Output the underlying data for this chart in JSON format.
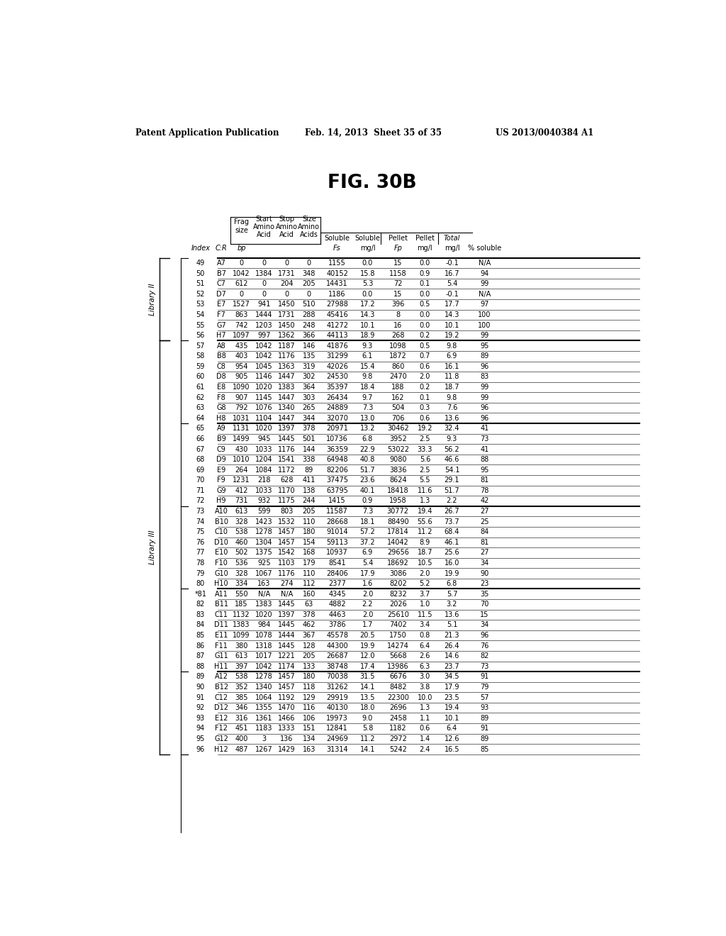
{
  "title": "FIG. 30B",
  "patent_left": "Patent Application Publication",
  "patent_mid": "Feb. 14, 2013  Sheet 35 of 35",
  "patent_right": "US 2013/0040384 A1",
  "rows": [
    [
      49,
      "A7",
      0,
      0,
      0,
      0,
      1155,
      "0.0",
      15,
      "0.0",
      "-0.1",
      "N/A"
    ],
    [
      50,
      "B7",
      1042,
      1384,
      1731,
      348,
      40152,
      "15.8",
      1158,
      "0.9",
      "16.7",
      94
    ],
    [
      51,
      "C7",
      612,
      0,
      204,
      205,
      14431,
      "5.3",
      72,
      "0.1",
      "5.4",
      99
    ],
    [
      52,
      "D7",
      0,
      0,
      0,
      0,
      1186,
      "0.0",
      15,
      "0.0",
      "-0.1",
      "N/A"
    ],
    [
      53,
      "E7",
      1527,
      941,
      1450,
      510,
      27988,
      "17.2",
      396,
      "0.5",
      "17.7",
      97
    ],
    [
      54,
      "F7",
      863,
      1444,
      1731,
      288,
      45416,
      "14.3",
      8,
      "0.0",
      "14.3",
      100
    ],
    [
      55,
      "G7",
      742,
      1203,
      1450,
      248,
      41272,
      "10.1",
      16,
      "0.0",
      "10.1",
      100
    ],
    [
      56,
      "H7",
      1097,
      997,
      1362,
      366,
      44113,
      "18.9",
      268,
      "0.2",
      "19.2",
      99
    ],
    [
      57,
      "A8",
      435,
      1042,
      1187,
      146,
      41876,
      "9.3",
      1098,
      "0.5",
      "9.8",
      95
    ],
    [
      58,
      "B8",
      403,
      1042,
      1176,
      135,
      31299,
      "6.1",
      1872,
      "0.7",
      "6.9",
      89
    ],
    [
      59,
      "C8",
      954,
      1045,
      1363,
      319,
      42026,
      "15.4",
      860,
      "0.6",
      "16.1",
      96
    ],
    [
      60,
      "D8",
      905,
      1146,
      1447,
      302,
      24530,
      "9.8",
      2470,
      "2.0",
      "11.8",
      83
    ],
    [
      61,
      "E8",
      1090,
      1020,
      1383,
      364,
      35397,
      "18.4",
      188,
      "0.2",
      "18.7",
      99
    ],
    [
      62,
      "F8",
      907,
      1145,
      1447,
      303,
      26434,
      "9.7",
      162,
      "0.1",
      "9.8",
      99
    ],
    [
      63,
      "G8",
      792,
      1076,
      1340,
      265,
      24889,
      "7.3",
      504,
      "0.3",
      "7.6",
      96
    ],
    [
      64,
      "H8",
      1031,
      1104,
      1447,
      344,
      32070,
      "13.0",
      706,
      "0.6",
      "13.6",
      96
    ],
    [
      65,
      "A9",
      1131,
      1020,
      1397,
      378,
      20971,
      "13.2",
      30462,
      "19.2",
      "32.4",
      41
    ],
    [
      66,
      "B9",
      1499,
      945,
      1445,
      501,
      10736,
      "6.8",
      3952,
      "2.5",
      "9.3",
      73
    ],
    [
      67,
      "C9",
      430,
      1033,
      1176,
      144,
      36359,
      "22.9",
      53022,
      "33.3",
      "56.2",
      41
    ],
    [
      68,
      "D9",
      1010,
      1204,
      1541,
      338,
      64948,
      "40.8",
      9080,
      "5.6",
      "46.6",
      88
    ],
    [
      69,
      "E9",
      264,
      1084,
      1172,
      89,
      82206,
      "51.7",
      3836,
      "2.5",
      "54.1",
      95
    ],
    [
      70,
      "F9",
      1231,
      218,
      628,
      411,
      37475,
      "23.6",
      8624,
      "5.5",
      "29.1",
      81
    ],
    [
      71,
      "G9",
      412,
      1033,
      1170,
      138,
      63795,
      "40.1",
      18418,
      "11.6",
      "51.7",
      78
    ],
    [
      72,
      "H9",
      731,
      932,
      1175,
      244,
      1415,
      "0.9",
      1958,
      "1.3",
      "2.2",
      42
    ],
    [
      73,
      "A10",
      613,
      599,
      803,
      205,
      11587,
      "7.3",
      30772,
      "19.4",
      "26.7",
      27
    ],
    [
      74,
      "B10",
      328,
      1423,
      1532,
      110,
      28668,
      "18.1",
      88490,
      "55.6",
      "73.7",
      25
    ],
    [
      75,
      "C10",
      538,
      1278,
      1457,
      180,
      91014,
      "57.2",
      17814,
      "11.2",
      "68.4",
      84
    ],
    [
      76,
      "D10",
      460,
      1304,
      1457,
      154,
      59113,
      "37.2",
      14042,
      "8.9",
      "46.1",
      81
    ],
    [
      77,
      "E10",
      502,
      1375,
      1542,
      168,
      10937,
      "6.9",
      29656,
      "18.7",
      "25.6",
      27
    ],
    [
      78,
      "F10",
      536,
      925,
      1103,
      179,
      8541,
      "5.4",
      18692,
      "10.5",
      "16.0",
      34
    ],
    [
      79,
      "G10",
      328,
      1067,
      1176,
      110,
      28406,
      "17.9",
      3086,
      "2.0",
      "19.9",
      90
    ],
    [
      80,
      "H10",
      334,
      163,
      274,
      112,
      2377,
      "1.6",
      8202,
      "5.2",
      "6.8",
      23
    ],
    [
      "*81",
      "A11",
      550,
      "N/A",
      "N/A",
      160,
      4345,
      "2.0",
      8232,
      "3.7",
      "5.7",
      35
    ],
    [
      82,
      "B11",
      185,
      1383,
      1445,
      63,
      4882,
      "2.2",
      2026,
      "1.0",
      "3.2",
      70
    ],
    [
      83,
      "C11",
      1132,
      1020,
      1397,
      378,
      4463,
      "2.0",
      25610,
      "11.5",
      "13.6",
      15
    ],
    [
      84,
      "D11",
      1383,
      984,
      1445,
      462,
      3786,
      "1.7",
      7402,
      "3.4",
      "5.1",
      34
    ],
    [
      85,
      "E11",
      1099,
      1078,
      1444,
      367,
      45578,
      "20.5",
      1750,
      "0.8",
      "21.3",
      96
    ],
    [
      86,
      "F11",
      380,
      1318,
      1445,
      128,
      44300,
      "19.9",
      14274,
      "6.4",
      "26.4",
      76
    ],
    [
      87,
      "G11",
      613,
      1017,
      1221,
      205,
      26687,
      "12.0",
      5668,
      "2.6",
      "14.6",
      82
    ],
    [
      88,
      "H11",
      397,
      1042,
      1174,
      133,
      38748,
      "17.4",
      13986,
      "6.3",
      "23.7",
      73
    ],
    [
      89,
      "A12",
      538,
      1278,
      1457,
      180,
      70038,
      "31.5",
      6676,
      "3.0",
      "34.5",
      91
    ],
    [
      90,
      "B12",
      352,
      1340,
      1457,
      118,
      31262,
      "14.1",
      8482,
      "3.8",
      "17.9",
      79
    ],
    [
      91,
      "C12",
      385,
      1064,
      1192,
      129,
      29919,
      "13.5",
      22300,
      "10.0",
      "23.5",
      57
    ],
    [
      92,
      "D12",
      346,
      1355,
      1470,
      116,
      40130,
      "18.0",
      2696,
      "1.3",
      "19.4",
      93
    ],
    [
      93,
      "E12",
      316,
      1361,
      1466,
      106,
      19973,
      "9.0",
      2458,
      "1.1",
      "10.1",
      89
    ],
    [
      94,
      "F12",
      451,
      1183,
      1333,
      151,
      12841,
      "5.8",
      1182,
      "0.6",
      "6.4",
      91
    ],
    [
      95,
      "G12",
      400,
      3,
      136,
      134,
      24969,
      "11.2",
      2972,
      "1.4",
      "12.6",
      89
    ],
    [
      96,
      "H12",
      487,
      1267,
      1429,
      163,
      31314,
      "14.1",
      5242,
      "2.4",
      "16.5",
      85
    ]
  ],
  "thick_separator_rows": [
    7,
    15,
    23,
    31,
    39
  ],
  "background_color": "#ffffff",
  "text_color": "#000000",
  "font_size": 7.0,
  "header_font_size": 7.0
}
